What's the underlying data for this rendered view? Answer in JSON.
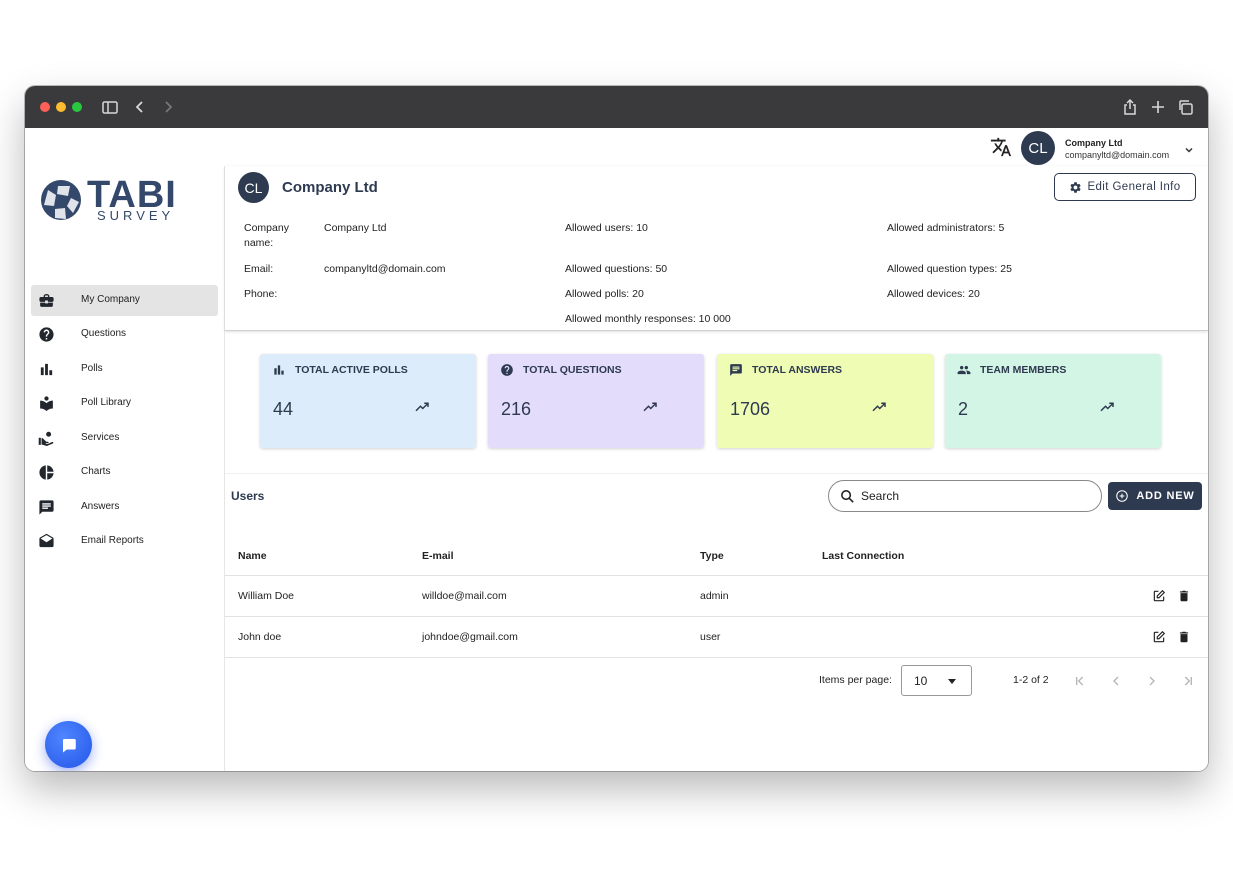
{
  "header": {
    "avatar_initials": "CL",
    "company": "Company Ltd",
    "email": "companyltd@domain.com"
  },
  "sidebar": {
    "logo_text": "TABI",
    "logo_sub": "SURVEY",
    "items": [
      {
        "label": "My Company",
        "icon": "briefcase-icon",
        "active": true
      },
      {
        "label": "Questions",
        "icon": "help-circle-icon"
      },
      {
        "label": "Polls",
        "icon": "bar-chart-icon"
      },
      {
        "label": "Poll Library",
        "icon": "library-icon"
      },
      {
        "label": "Services",
        "icon": "hand-service-icon"
      },
      {
        "label": "Charts",
        "icon": "pie-chart-icon"
      },
      {
        "label": "Answers",
        "icon": "message-icon"
      },
      {
        "label": "Email Reports",
        "icon": "envelope-open-icon"
      }
    ]
  },
  "company": {
    "avatar_initials": "CL",
    "title": "Company Ltd",
    "edit_label": "Edit General Info",
    "name_label": "Company\nname:",
    "name_value": "Company Ltd",
    "email_label": "Email:",
    "email_value": "companyltd@domain.com",
    "phone_label": "Phone:",
    "allowed_users": "Allowed users: 10",
    "allowed_questions": "Allowed questions: 50",
    "allowed_polls": "Allowed polls: 20",
    "allowed_monthly": "Allowed monthly responses: 10 000",
    "allowed_admins": "Allowed administrators: 5",
    "allowed_question_types": "Allowed question types: 25",
    "allowed_devices": "Allowed devices: 20"
  },
  "stats": [
    {
      "title": "TOTAL ACTIVE POLLS",
      "value": "44",
      "icon": "bar-chart-icon",
      "color": "#dcecfa"
    },
    {
      "title": "TOTAL QUESTIONS",
      "value": "216",
      "icon": "help-circle-icon",
      "color": "#e4dcfb"
    },
    {
      "title": "TOTAL ANSWERS",
      "value": "1706",
      "icon": "message-icon",
      "color": "#eefcb4"
    },
    {
      "title": "TEAM MEMBERS",
      "value": "2",
      "icon": "people-icon",
      "color": "#d3f5e6"
    }
  ],
  "users": {
    "title": "Users",
    "search_placeholder": "Search",
    "add_label": "ADD NEW",
    "columns": [
      "Name",
      "E-mail",
      "Type",
      "Last Connection"
    ],
    "rows": [
      {
        "name": "William Doe",
        "email": "willdoe@mail.com",
        "type": "admin",
        "last": ""
      },
      {
        "name": "John doe",
        "email": "johndoe@gmail.com",
        "type": "user",
        "last": ""
      }
    ],
    "items_per_page_label": "Items per page:",
    "items_per_page": "10",
    "range": "1-2 of 2"
  }
}
